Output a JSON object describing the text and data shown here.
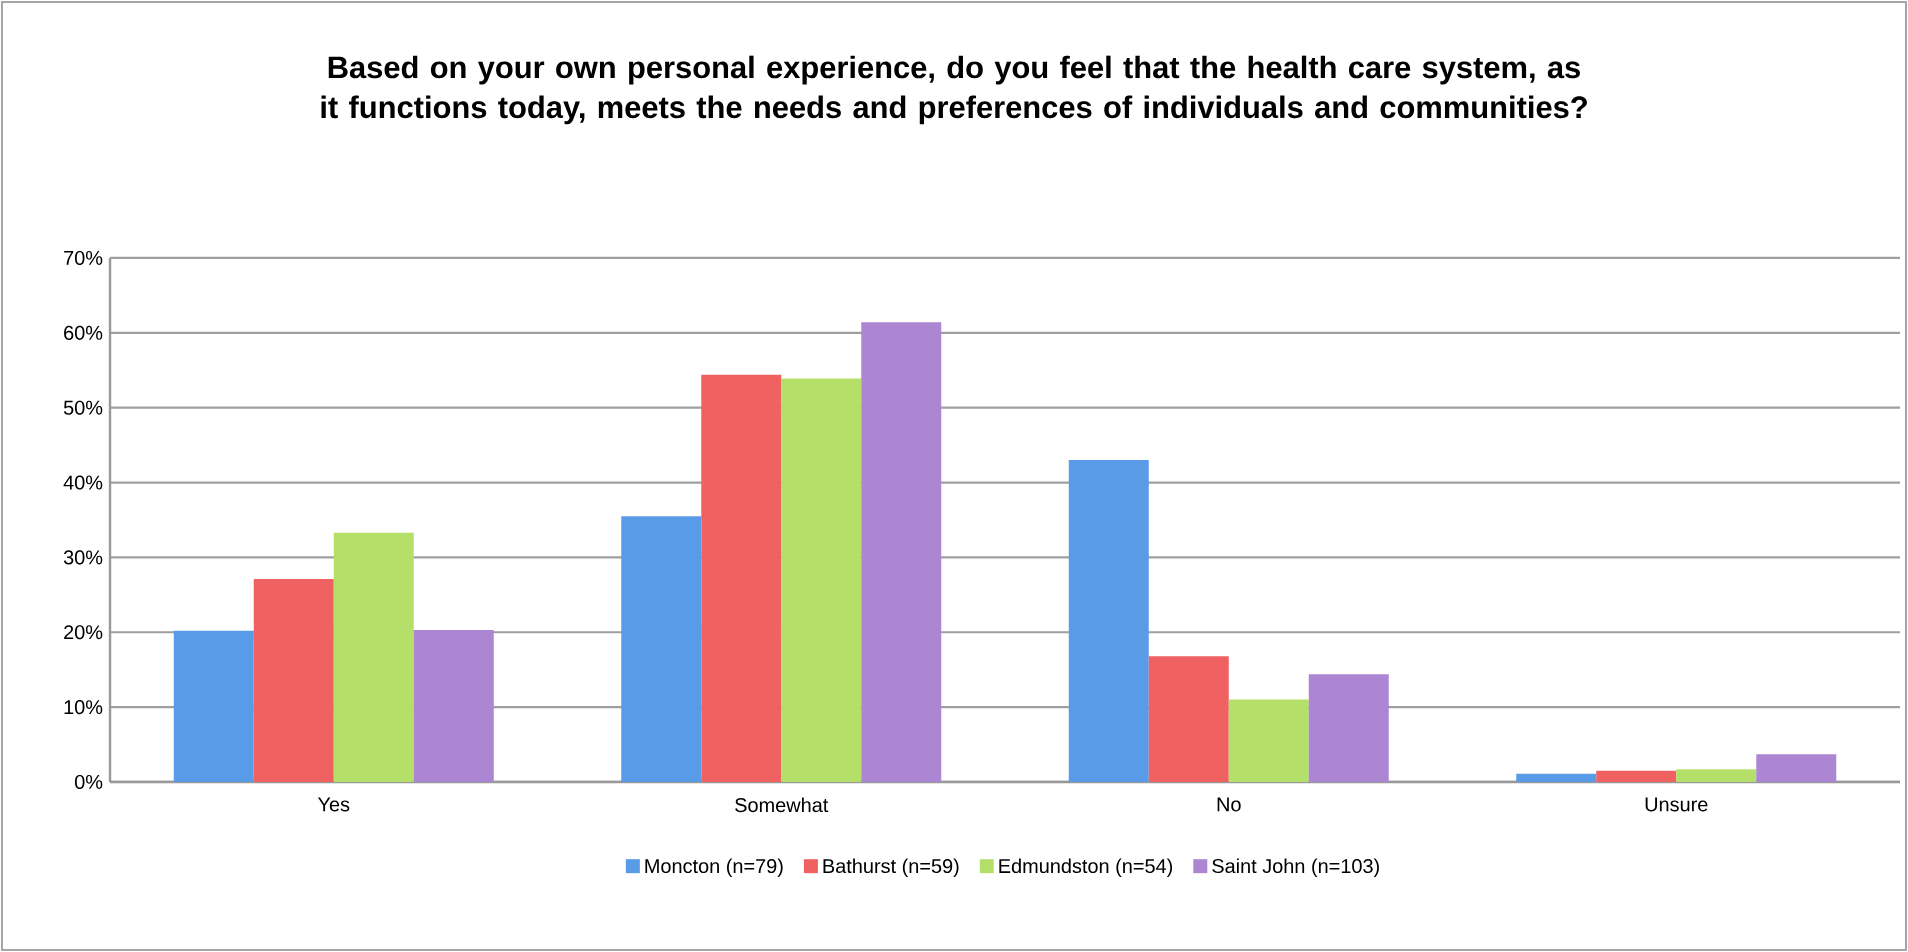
{
  "chart_data": {
    "type": "bar",
    "title": "Based on your own personal experience, do you feel that the health care system, as it functions today, meets the needs and preferences of individuals and communities?",
    "categories": [
      "Yes",
      "Somewhat",
      "No",
      "Unsure"
    ],
    "series": [
      {
        "name": "Moncton (n=79)",
        "color": "#5a9be8",
        "values": [
          20.2,
          35.5,
          43.0,
          1.1
        ]
      },
      {
        "name": "Bathurst (n=59)",
        "color": "#f06262",
        "values": [
          27.1,
          54.4,
          16.8,
          1.5
        ]
      },
      {
        "name": "Edmundston (n=54)",
        "color": "#b4e06a",
        "values": [
          33.3,
          53.9,
          11.0,
          1.7
        ]
      },
      {
        "name": "Saint John (n=103)",
        "color": "#ac86d2",
        "values": [
          20.3,
          61.4,
          14.4,
          3.7
        ]
      }
    ],
    "ylim": [
      0,
      70
    ],
    "yticks": [
      {
        "value": 0,
        "label": "0%"
      },
      {
        "value": 10,
        "label": "10%"
      },
      {
        "value": 20,
        "label": "20%"
      },
      {
        "value": 30,
        "label": "30%"
      },
      {
        "value": 40,
        "label": "40%"
      },
      {
        "value": 50,
        "label": "50%"
      },
      {
        "value": 60,
        "label": "60%"
      },
      {
        "value": 70,
        "label": "70%"
      }
    ],
    "grid": "y",
    "legend": "bottom"
  }
}
